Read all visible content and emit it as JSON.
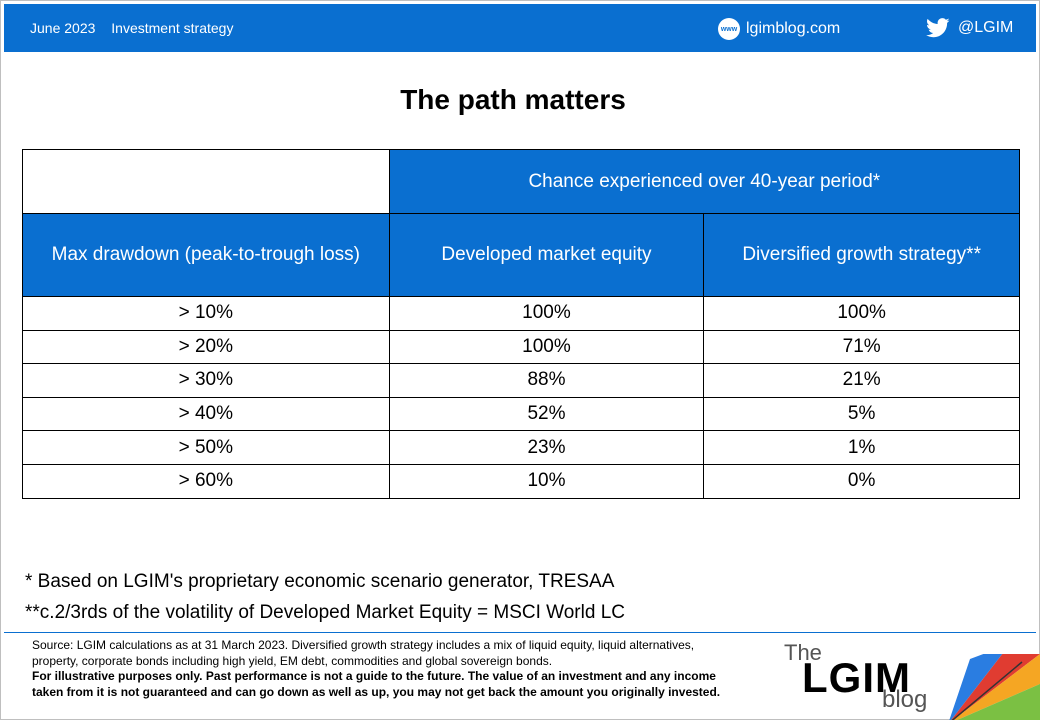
{
  "header": {
    "date": "June 2023",
    "category": "Investment strategy",
    "website": "lgimblog.com",
    "website_icon_label": "www",
    "twitter_handle": "@LGIM",
    "accent_color": "#0a6fd0"
  },
  "title": "The path matters",
  "table": {
    "group_header": "Chance experienced over 40-year period*",
    "row_header": "Max drawdown  (peak-to-trough  loss)",
    "col1_header": "Developed  market  equity",
    "col2_header": "Diversified growth strategy**",
    "rows": [
      {
        "drawdown": "> 10%",
        "dme": "100%",
        "dgs": "100%"
      },
      {
        "drawdown": "> 20%",
        "dme": "100%",
        "dgs": "71%"
      },
      {
        "drawdown": "> 30%",
        "dme": "88%",
        "dgs": "21%"
      },
      {
        "drawdown": "> 40%",
        "dme": "52%",
        "dgs": "5%"
      },
      {
        "drawdown": "> 50%",
        "dme": "23%",
        "dgs": "1%"
      },
      {
        "drawdown": "> 60%",
        "dme": "10%",
        "dgs": "0%"
      }
    ]
  },
  "notes": {
    "note1": "* Based on LGIM's proprietary economic scenario generator, TRESAA",
    "note2": "**c.2/3rds of the volatility of Developed Market Equity = MSCI World LC"
  },
  "footer": {
    "source": "Source: LGIM calculations as at 31 March 2023. Diversified  growth  strategy includes a mix of liquid equity, liquid alternatives,  property,  corporate  bonds including high yield, EM debt,  commodities and global sovereign  bonds.",
    "disclaimer": "For illustrative purposes  only. Past performance is not a guide to the future.  The value of an investment and any income taken from it is not guaranteed and can go down as well as up, you may not get back the amount you originally invested."
  },
  "logo": {
    "the": "The",
    "name": "LGIM",
    "blog": "blog"
  }
}
